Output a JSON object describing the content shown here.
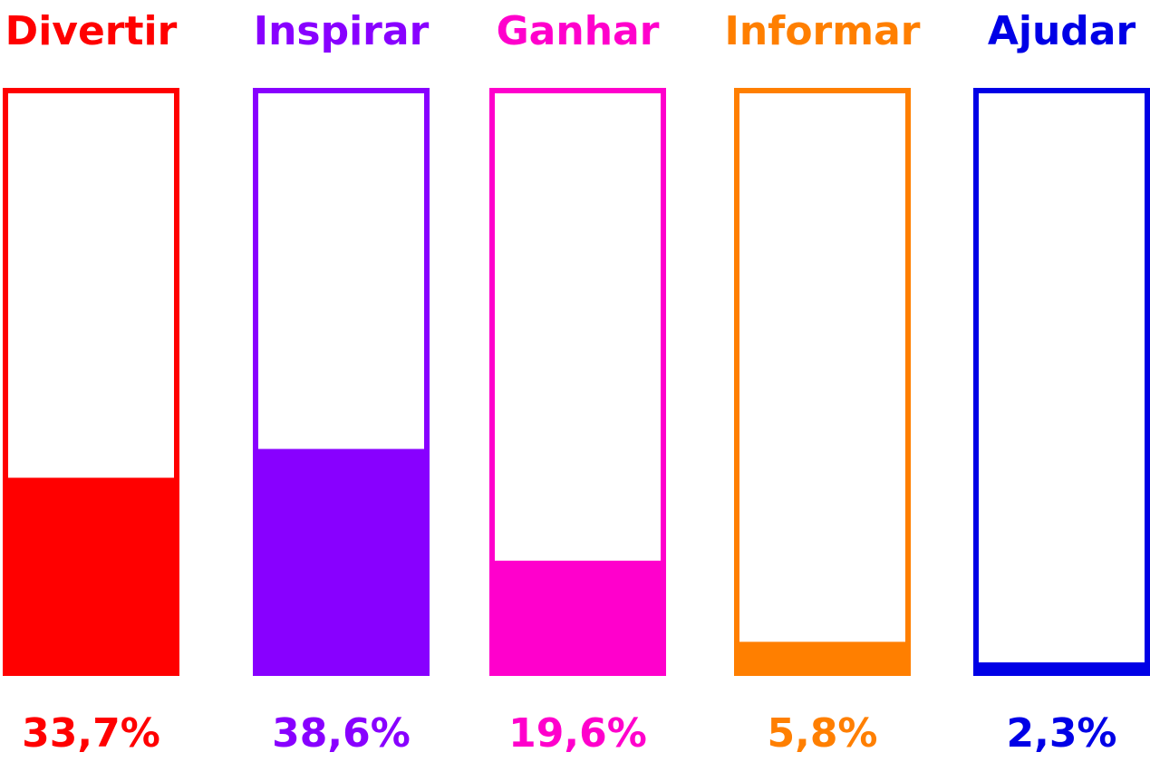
{
  "chart_data": {
    "type": "bar",
    "categories": [
      "Divertir",
      "Inspirar",
      "Ganhar",
      "Informar",
      "Ajudar"
    ],
    "values": [
      33.7,
      38.6,
      19.6,
      5.8,
      2.3
    ],
    "value_labels": [
      "33,7%",
      "38,6%",
      "19,6%",
      "5,8%",
      "2,3%"
    ],
    "colors": [
      "#ff0000",
      "#8800ff",
      "#ff00cc",
      "#ff7f00",
      "#0000e6"
    ],
    "ylim": [
      0,
      100
    ]
  }
}
